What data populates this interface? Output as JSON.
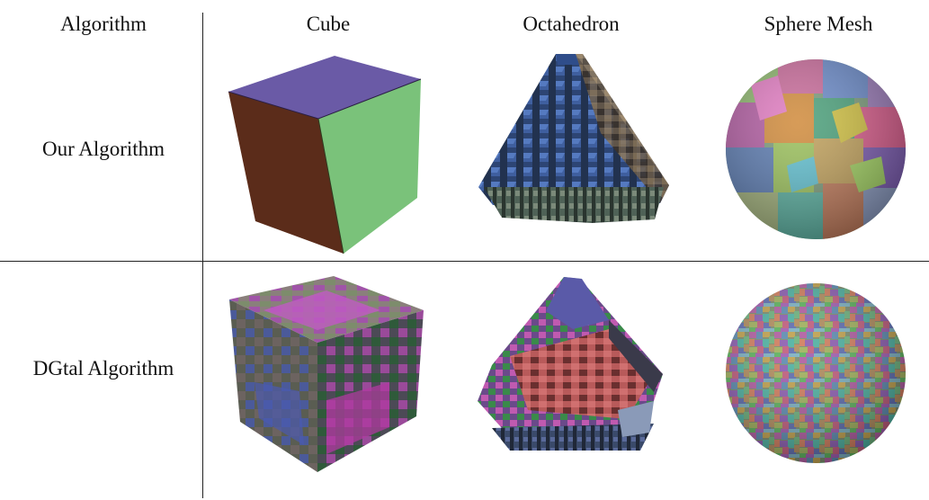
{
  "table": {
    "columns": [
      "Algorithm",
      "Cube",
      "Octahedron",
      "Sphere Mesh"
    ],
    "rows": [
      {
        "label": "Our Algorithm"
      },
      {
        "label": "DGtal Algorithm"
      }
    ]
  }
}
